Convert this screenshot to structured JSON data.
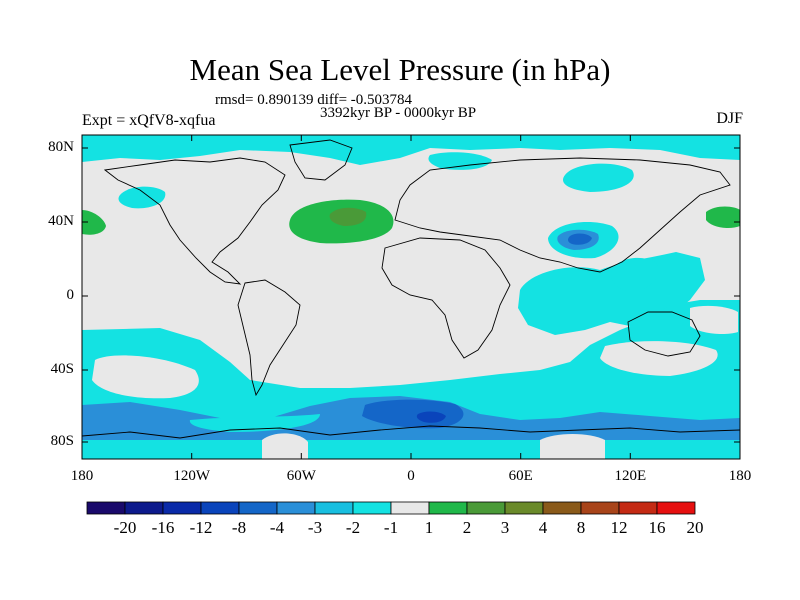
{
  "title": "Mean Sea Level Pressure (in hPa)",
  "stats": "rmsd= 0.890139 diff= -0.503784",
  "period": "3392kyr BP - 0000kyr BP",
  "experiment": "Expt = xQfV8-xqfua",
  "season": "DJF",
  "lat_labels": [
    "80N",
    "40N",
    "0",
    "40S",
    "80S"
  ],
  "lon_labels": [
    "180",
    "120W",
    "60W",
    "0",
    "60E",
    "120E",
    "180"
  ],
  "colorbar": {
    "labels": [
      "-20",
      "-16",
      "-12",
      "-8",
      "-4",
      "-3",
      "-2",
      "-1",
      "1",
      "2",
      "3",
      "4",
      "8",
      "12",
      "16",
      "20"
    ],
    "colors": [
      "#1a0a6b",
      "#0d1a8c",
      "#0a2aa8",
      "#0a44bb",
      "#1466c8",
      "#2a8fd8",
      "#18bfe0",
      "#14e2e2",
      "#e8e8e8",
      "#20b84a",
      "#4a9a38",
      "#6a8a2a",
      "#8a5a1a",
      "#a8441a",
      "#c42a14",
      "#e61010"
    ]
  },
  "palette": {
    "neutral": "#e8e8e8",
    "cyan": "#14e2e2",
    "mid_blue": "#2a8fd8",
    "deep_blue": "#1466c8",
    "green": "#20b84a",
    "olive": "#4a9a38"
  }
}
